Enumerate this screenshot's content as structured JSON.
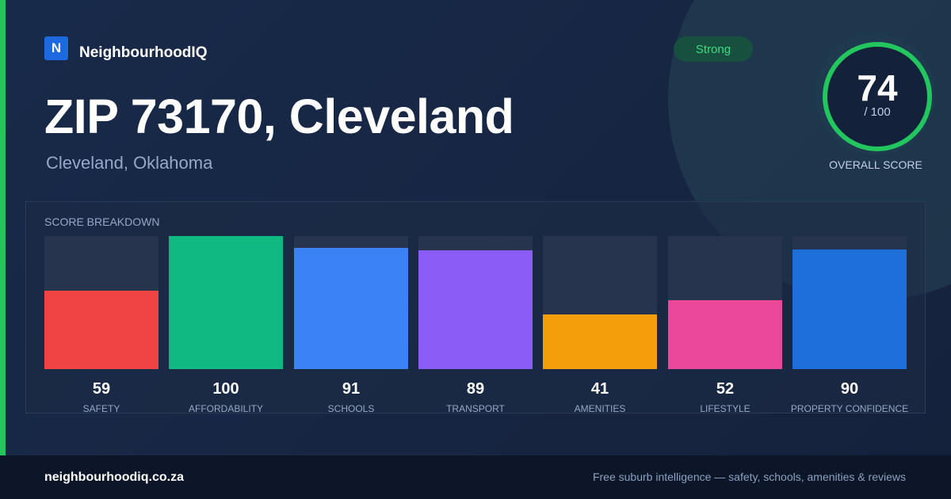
{
  "brand": {
    "logo_letter": "N",
    "name": "NeighbourhoodIQ",
    "accent": "#22c55e",
    "logo_color": "#1d6ae0"
  },
  "header": {
    "title": "ZIP 73170, Cleveland",
    "subtitle": "Cleveland, Oklahoma",
    "badge": "Strong"
  },
  "overall": {
    "value": "74",
    "suffix": "/ 100",
    "label": "OVERALL SCORE",
    "color": "#22c55e"
  },
  "breakdown": {
    "title": "SCORE BREAKDOWN",
    "max": 100,
    "items": [
      {
        "label": "SAFETY",
        "value": 59,
        "display": "59",
        "color": "#ef4444"
      },
      {
        "label": "AFFORDABILITY",
        "value": 100,
        "display": "100",
        "color": "#10b981"
      },
      {
        "label": "SCHOOLS",
        "value": 91,
        "display": "91",
        "color": "#3b82f6"
      },
      {
        "label": "TRANSPORT",
        "value": 89,
        "display": "89",
        "color": "#8b5cf6"
      },
      {
        "label": "AMENITIES",
        "value": 41,
        "display": "41",
        "color": "#f59e0b"
      },
      {
        "label": "LIFESTYLE",
        "value": 52,
        "display": "52",
        "color": "#ec4899"
      },
      {
        "label": "PROPERTY CONFIDENCE",
        "value": 90,
        "display": "90",
        "color": "#1d6fd9"
      }
    ]
  },
  "footer": {
    "url": "neighbourhoodiq.co.za",
    "tagline": "Free suburb intelligence — safety, schools, amenities & reviews"
  }
}
